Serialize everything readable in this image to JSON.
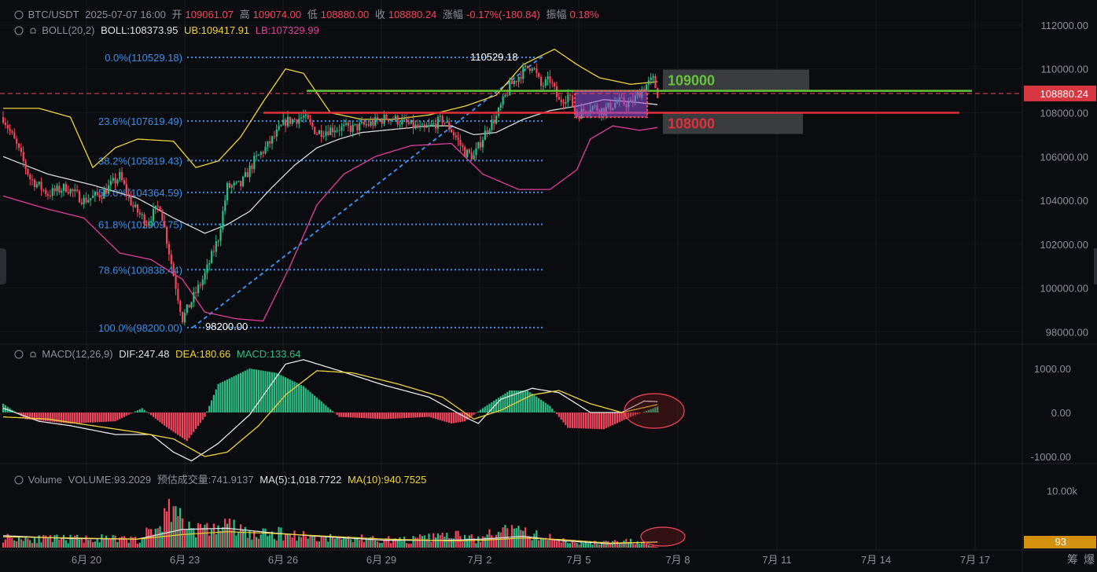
{
  "header": {
    "symbol": "BTC/USDT",
    "datetime": "2025-07-07 16:00",
    "open_label": "开",
    "open": "109061.07",
    "high_label": "高",
    "high": "109074.00",
    "low_label": "低",
    "low": "108880.00",
    "close_label": "收",
    "close": "108880.24",
    "change_label": "涨幅",
    "change": "-0.17%(-180.84)",
    "amplitude_label": "振幅",
    "amplitude": "0.18%"
  },
  "boll": {
    "name": "BOLL(20,2)",
    "boll": "BOLL:108373.95",
    "ub": "UB:109417.91",
    "lb": "LB:107329.99"
  },
  "macd": {
    "name": "MACD(12,26,9)",
    "dif": "DIF:247.48",
    "dea": "DEA:180.66",
    "macd": "MACD:133.64"
  },
  "volume": {
    "name": "Volume",
    "vol": "VOLUME:93.2029",
    "est": "预估成交量:741.9137",
    "ma5": "MA(5):1,018.7722",
    "ma10": "MA(10):940.7525"
  },
  "colors": {
    "up": "#2ebd85",
    "down": "#f6465d",
    "boll_mid": "#d9d9d9",
    "ub": "#f0d43a",
    "lb": "#e0409a",
    "fib": "#3d8fe8",
    "green_line": "#65c23a",
    "red_line": "#e0303a"
  },
  "chart_data": [
    {
      "type": "candlestick",
      "title": "BTC/USDT",
      "x_ticks": [
        "6月 20",
        "6月 23",
        "6月 26",
        "6月 29",
        "7月 2",
        "7月 5",
        "7月 8",
        "7月 11",
        "7月 14",
        "7月 17"
      ],
      "y_ticks": [
        "112000.00",
        "110000.00",
        "108000.00",
        "106000.00",
        "104000.00",
        "102000.00",
        "100000.00",
        "98000.00"
      ],
      "ylim": [
        97800,
        112500
      ],
      "last_price": "108880.24",
      "fibonacci": [
        {
          "label": "0.0%(110529.18)",
          "value": 110529.18
        },
        {
          "label": "23.6%(107619.49)",
          "value": 107619.49
        },
        {
          "label": "38.2%(105819.43)",
          "value": 105819.43
        },
        {
          "label": "50.0%(104364.59)",
          "value": 104364.59
        },
        {
          "label": "61.8%(102909.75)",
          "value": 102909.75
        },
        {
          "label": "78.6%(100838.44)",
          "value": 100838.44
        },
        {
          "label": "100.0%(98200.00)",
          "value": 98200.0
        }
      ],
      "fib_high_label": "110529.18",
      "fib_low_label": "98200.00",
      "annotations": [
        {
          "label": "109000",
          "value": 109000,
          "color": "green"
        },
        {
          "label": "108000",
          "value": 108000,
          "color": "red"
        }
      ],
      "price_path": [
        [
          0,
          107800
        ],
        [
          6,
          106500
        ],
        [
          12,
          105000
        ],
        [
          20,
          104300
        ],
        [
          28,
          104600
        ],
        [
          36,
          104000
        ],
        [
          44,
          104300
        ],
        [
          52,
          105100
        ],
        [
          58,
          103700
        ],
        [
          64,
          103000
        ],
        [
          70,
          103800
        ],
        [
          76,
          100600
        ],
        [
          80,
          98600
        ],
        [
          84,
          99400
        ],
        [
          90,
          100600
        ],
        [
          96,
          102300
        ],
        [
          100,
          104600
        ],
        [
          106,
          104700
        ],
        [
          112,
          105800
        ],
        [
          118,
          106500
        ],
        [
          126,
          107600
        ],
        [
          134,
          107800
        ],
        [
          140,
          107100
        ],
        [
          148,
          107300
        ],
        [
          156,
          107300
        ],
        [
          164,
          107500
        ],
        [
          172,
          107800
        ],
        [
          180,
          107500
        ],
        [
          188,
          107200
        ],
        [
          196,
          107700
        ],
        [
          200,
          107200
        ],
        [
          206,
          106200
        ],
        [
          210,
          106000
        ],
        [
          216,
          107300
        ],
        [
          220,
          107800
        ],
        [
          226,
          109200
        ],
        [
          232,
          109900
        ],
        [
          236,
          110200
        ],
        [
          240,
          109200
        ],
        [
          244,
          109500
        ],
        [
          248,
          108500
        ],
        [
          252,
          108800
        ],
        [
          256,
          107900
        ],
        [
          262,
          108300
        ],
        [
          268,
          108100
        ],
        [
          274,
          108500
        ],
        [
          280,
          108400
        ],
        [
          286,
          109200
        ],
        [
          290,
          109500
        ],
        [
          292,
          108880
        ]
      ],
      "boll_mid_path": [
        [
          0,
          106000
        ],
        [
          20,
          105200
        ],
        [
          40,
          104700
        ],
        [
          60,
          104100
        ],
        [
          76,
          103200
        ],
        [
          90,
          102500
        ],
        [
          100,
          102900
        ],
        [
          110,
          103500
        ],
        [
          120,
          104600
        ],
        [
          130,
          105600
        ],
        [
          140,
          106400
        ],
        [
          150,
          106800
        ],
        [
          160,
          107100
        ],
        [
          170,
          107200
        ],
        [
          180,
          107300
        ],
        [
          190,
          107400
        ],
        [
          200,
          107400
        ],
        [
          210,
          107000
        ],
        [
          220,
          107100
        ],
        [
          232,
          107700
        ],
        [
          244,
          108100
        ],
        [
          256,
          108300
        ],
        [
          268,
          108600
        ],
        [
          280,
          108500
        ],
        [
          292,
          108374
        ]
      ],
      "ub_path": [
        [
          0,
          108200
        ],
        [
          16,
          108200
        ],
        [
          30,
          107800
        ],
        [
          40,
          105500
        ],
        [
          50,
          106400
        ],
        [
          60,
          106800
        ],
        [
          76,
          106700
        ],
        [
          86,
          105500
        ],
        [
          96,
          105800
        ],
        [
          106,
          106900
        ],
        [
          116,
          108500
        ],
        [
          126,
          110000
        ],
        [
          134,
          109800
        ],
        [
          146,
          108000
        ],
        [
          160,
          107700
        ],
        [
          174,
          107700
        ],
        [
          190,
          107900
        ],
        [
          206,
          108300
        ],
        [
          220,
          108800
        ],
        [
          232,
          110200
        ],
        [
          246,
          110900
        ],
        [
          256,
          110200
        ],
        [
          266,
          109600
        ],
        [
          280,
          109300
        ],
        [
          292,
          109418
        ]
      ],
      "lb_path": [
        [
          0,
          104200
        ],
        [
          20,
          103600
        ],
        [
          36,
          103200
        ],
        [
          52,
          101600
        ],
        [
          66,
          101300
        ],
        [
          80,
          100400
        ],
        [
          90,
          98900
        ],
        [
          104,
          98600
        ],
        [
          116,
          98500
        ],
        [
          128,
          101000
        ],
        [
          140,
          103800
        ],
        [
          152,
          105200
        ],
        [
          166,
          106000
        ],
        [
          182,
          106500
        ],
        [
          200,
          106600
        ],
        [
          214,
          105200
        ],
        [
          230,
          104500
        ],
        [
          244,
          104500
        ],
        [
          256,
          105400
        ],
        [
          262,
          106800
        ],
        [
          272,
          107400
        ],
        [
          284,
          107200
        ],
        [
          292,
          107330
        ]
      ]
    },
    {
      "type": "bar",
      "title": "MACD(12,26,9)",
      "y_ticks": [
        "1000.00",
        "0.00",
        "-1000.00"
      ],
      "ylim": [
        -1200,
        1200
      ],
      "hist_path": [
        [
          0,
          200
        ],
        [
          10,
          -150
        ],
        [
          30,
          -250
        ],
        [
          50,
          -200
        ],
        [
          62,
          100
        ],
        [
          72,
          -300
        ],
        [
          82,
          -650
        ],
        [
          90,
          -100
        ],
        [
          96,
          650
        ],
        [
          110,
          1000
        ],
        [
          122,
          900
        ],
        [
          134,
          600
        ],
        [
          142,
          250
        ],
        [
          150,
          -100
        ],
        [
          170,
          -150
        ],
        [
          190,
          -100
        ],
        [
          200,
          -250
        ],
        [
          206,
          -200
        ],
        [
          214,
          100
        ],
        [
          226,
          500
        ],
        [
          234,
          500
        ],
        [
          244,
          150
        ],
        [
          252,
          -350
        ],
        [
          268,
          -380
        ],
        [
          280,
          -100
        ],
        [
          292,
          134
        ]
      ],
      "dif_path": [
        [
          0,
          100
        ],
        [
          16,
          -200
        ],
        [
          30,
          -300
        ],
        [
          50,
          -500
        ],
        [
          66,
          -500
        ],
        [
          76,
          -900
        ],
        [
          84,
          -1100
        ],
        [
          96,
          -700
        ],
        [
          110,
          -50
        ],
        [
          126,
          1100
        ],
        [
          134,
          1200
        ],
        [
          150,
          950
        ],
        [
          170,
          620
        ],
        [
          190,
          350
        ],
        [
          206,
          -100
        ],
        [
          212,
          -250
        ],
        [
          222,
          300
        ],
        [
          236,
          550
        ],
        [
          248,
          450
        ],
        [
          262,
          0
        ],
        [
          276,
          0
        ],
        [
          286,
          260
        ],
        [
          292,
          247
        ]
      ],
      "dea_path": [
        [
          0,
          -100
        ],
        [
          20,
          -150
        ],
        [
          40,
          -300
        ],
        [
          60,
          -450
        ],
        [
          76,
          -600
        ],
        [
          90,
          -1000
        ],
        [
          100,
          -900
        ],
        [
          114,
          -300
        ],
        [
          126,
          400
        ],
        [
          140,
          950
        ],
        [
          156,
          900
        ],
        [
          176,
          650
        ],
        [
          196,
          350
        ],
        [
          210,
          -150
        ],
        [
          222,
          50
        ],
        [
          236,
          400
        ],
        [
          248,
          500
        ],
        [
          262,
          200
        ],
        [
          276,
          0
        ],
        [
          292,
          181
        ]
      ]
    },
    {
      "type": "bar",
      "title": "Volume",
      "y_ticks": [
        "10.00k"
      ],
      "last_volume": "93",
      "vol_path": [
        [
          0,
          1800
        ],
        [
          20,
          1500
        ],
        [
          40,
          1600
        ],
        [
          60,
          1400
        ],
        [
          70,
          3800
        ],
        [
          76,
          8200
        ],
        [
          80,
          4200
        ],
        [
          90,
          3000
        ],
        [
          100,
          3900
        ],
        [
          112,
          2200
        ],
        [
          126,
          2500
        ],
        [
          140,
          1800
        ],
        [
          150,
          1700
        ],
        [
          160,
          1600
        ],
        [
          180,
          1300
        ],
        [
          200,
          2200
        ],
        [
          212,
          1400
        ],
        [
          222,
          3000
        ],
        [
          234,
          2500
        ],
        [
          246,
          1500
        ],
        [
          260,
          800
        ],
        [
          280,
          1100
        ],
        [
          292,
          93
        ]
      ],
      "ma5_path": [
        [
          0,
          2100
        ],
        [
          30,
          1600
        ],
        [
          60,
          1500
        ],
        [
          80,
          3200
        ],
        [
          100,
          3400
        ],
        [
          120,
          2600
        ],
        [
          140,
          2000
        ],
        [
          170,
          1300
        ],
        [
          200,
          1300
        ],
        [
          214,
          1500
        ],
        [
          232,
          2000
        ],
        [
          250,
          1200
        ],
        [
          270,
          700
        ],
        [
          292,
          1019
        ]
      ],
      "ma10_path": [
        [
          0,
          1900
        ],
        [
          30,
          1700
        ],
        [
          60,
          1500
        ],
        [
          80,
          2300
        ],
        [
          100,
          2800
        ],
        [
          120,
          2500
        ],
        [
          140,
          2100
        ],
        [
          170,
          1500
        ],
        [
          200,
          1200
        ],
        [
          214,
          1300
        ],
        [
          232,
          1700
        ],
        [
          250,
          1400
        ],
        [
          270,
          800
        ],
        [
          292,
          941
        ]
      ]
    }
  ]
}
